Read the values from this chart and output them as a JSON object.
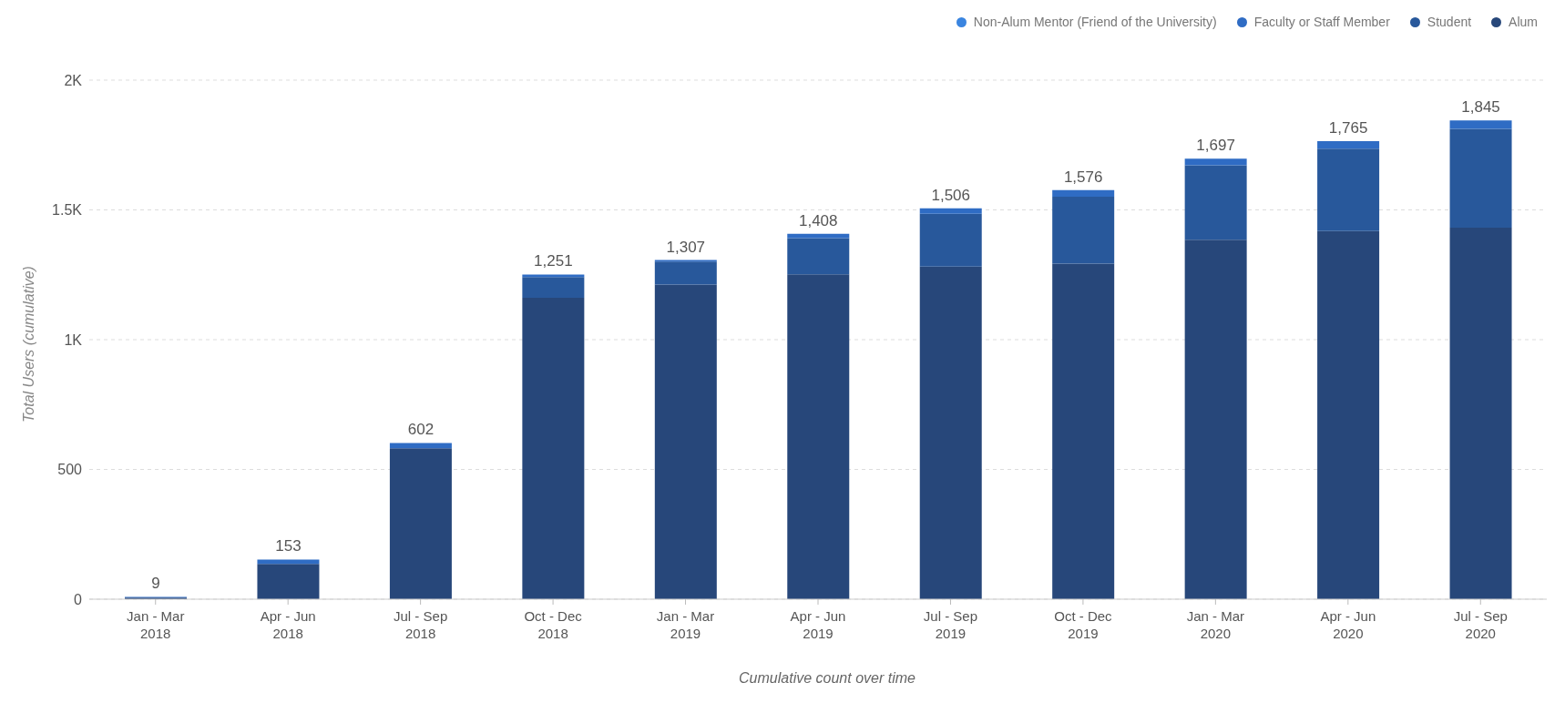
{
  "chart_data": {
    "type": "bar",
    "stacked": true,
    "categories": [
      "Jan - Mar 2018",
      "Apr - Jun 2018",
      "Jul - Sep 2018",
      "Oct - Dec 2018",
      "Jan - Mar 2019",
      "Apr - Jun 2019",
      "Jul - Sep 2019",
      "Oct - Dec 2019",
      "Jan - Mar 2020",
      "Apr - Jun 2020",
      "Jul - Sep 2020"
    ],
    "series": [
      {
        "name": "Alum",
        "color": "#27477a",
        "values": [
          6,
          136,
          582,
          1161,
          1212,
          1252,
          1282,
          1293,
          1385,
          1418,
          1432
        ]
      },
      {
        "name": "Student",
        "color": "#28589b",
        "values": [
          0,
          0,
          0,
          80,
          89,
          139,
          203,
          258,
          287,
          318,
          380
        ]
      },
      {
        "name": "Faculty or Staff Member",
        "color": "#2f6cc4",
        "values": [
          3,
          17,
          20,
          10,
          6,
          17,
          21,
          25,
          25,
          29,
          33
        ]
      },
      {
        "name": "Non-Alum Mentor (Friend of the University)",
        "color": "#3a85e0",
        "values": [
          0,
          0,
          0,
          0,
          0,
          0,
          0,
          0,
          0,
          0,
          0
        ]
      }
    ],
    "totals": [
      "9",
      "153",
      "602",
      "1,251",
      "1,307",
      "1,408",
      "1,506",
      "1,576",
      "1,697",
      "1,765",
      "1,845"
    ],
    "ylim": [
      0,
      2000
    ],
    "yticks": [
      0,
      500,
      {
        "value": 1000,
        "label": "1K"
      },
      {
        "value": 1500,
        "label": "1.5K"
      },
      {
        "value": 2000,
        "label": "2K"
      }
    ],
    "ylabel": "Total Users (cumulative)",
    "xlabel": "Cumulative count over time",
    "grid": "y",
    "legend": "top right"
  }
}
